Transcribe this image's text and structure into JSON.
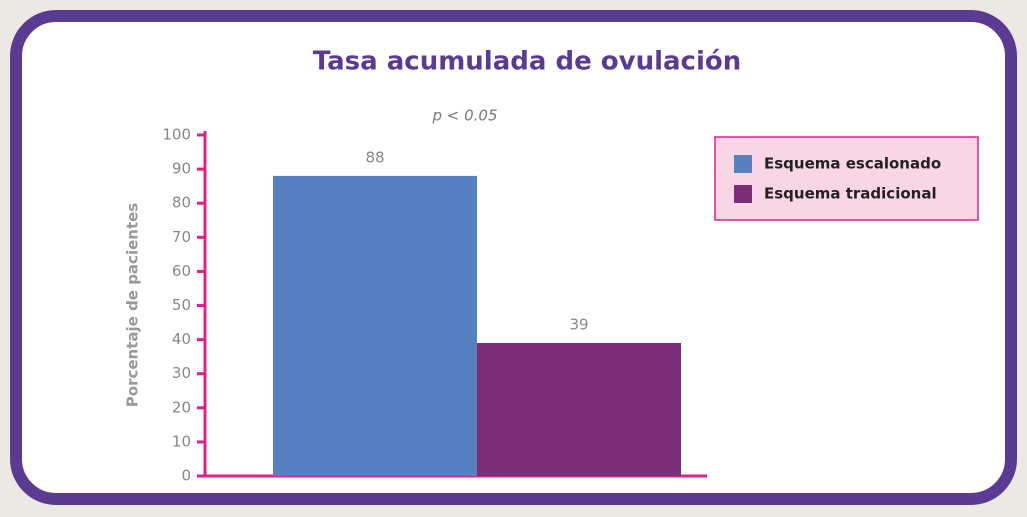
{
  "chart_data": {
    "type": "bar",
    "title": "Tasa acumulada de ovulación",
    "annotation": "p < 0.05",
    "y_label": "Porcentaje de pacientes",
    "categories": [
      null
    ],
    "series": [
      {
        "name": "Esquema escalonado",
        "color": "#5680c0",
        "values": [
          88
        ]
      },
      {
        "name": "Esquema tradicional",
        "color": "#7b2d78",
        "values": [
          39
        ]
      }
    ],
    "ylim": [
      0,
      100
    ],
    "yticks": [
      0,
      10,
      20,
      30,
      40,
      50,
      60,
      70,
      80,
      90,
      100
    ],
    "legend": "upper right"
  }
}
